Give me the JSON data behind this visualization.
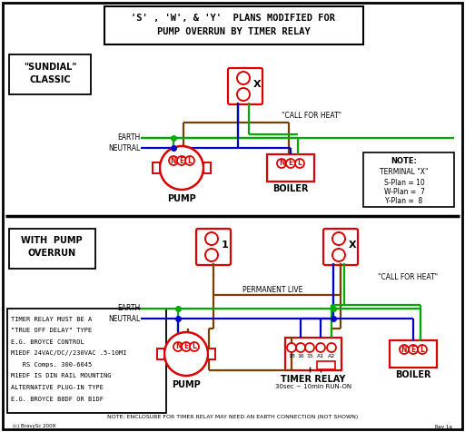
{
  "bg_color": "#ffffff",
  "red": "#dd0000",
  "green": "#00aa00",
  "blue": "#0000cc",
  "brown": "#7B3F00",
  "black": "#000000",
  "title_line1": "'S' , 'W', & 'Y'  PLANS MODIFIED FOR",
  "title_line2": "PUMP OVERRUN BY TIMER RELAY",
  "timer_info_lines": [
    "TIMER RELAY MUST BE A",
    "\"TRUE OFF DELAY\" TYPE",
    "E.G. BROYCE CONTROL",
    "M1EDF 24VAC/DC//230VAC .5-10MI",
    "   RS Comps. 300-6045",
    "M1EDF IS DIN RAIL MOUNTING",
    "ALTERNATIVE PLUG-IN TYPE",
    "E.G. BROYCE B8DF OR B1DF"
  ],
  "timer_note": "NOTE: ENCLOSURE FOR TIMER RELAY MAY NEED AN EARTH CONNECTION (NOT SHOWN)",
  "copyright": "(c) BravySc 2009",
  "rev": "Rev 1a"
}
